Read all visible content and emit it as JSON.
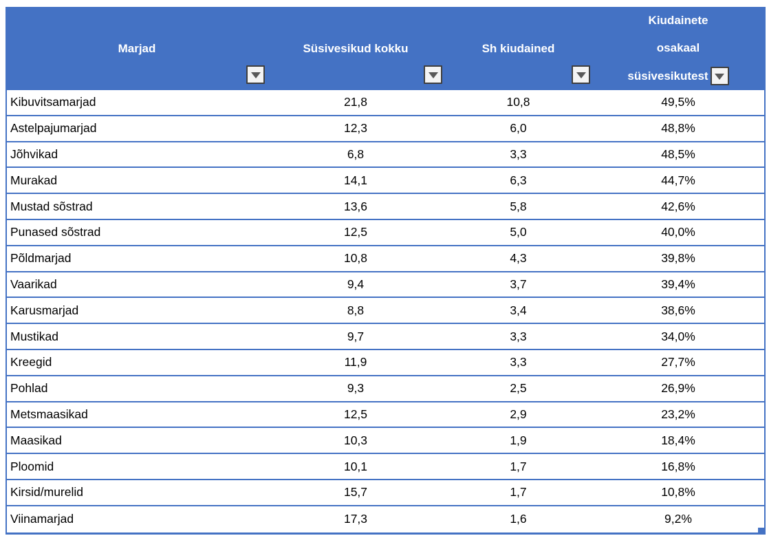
{
  "colors": {
    "header_bg": "#4472C4",
    "header_text": "#FFFFFF",
    "grid_border": "#4472C4",
    "cell_text": "#000000",
    "filter_button_bg": "#F4F4F4",
    "filter_button_border": "#3F3F3F",
    "filter_arrow": "#595959"
  },
  "table": {
    "headers": {
      "col1": {
        "label": "Marjad"
      },
      "col2": {
        "label": "Süsivesikud kokku"
      },
      "col3": {
        "label": "Sh kiudained"
      },
      "col4": {
        "label": "Kiudainete osakaal süsivesikutest",
        "line1": "Kiudainete",
        "line2": "osakaal",
        "line3": "süsivesikutest"
      }
    },
    "rows": [
      {
        "name": "Kibuvitsamarjad",
        "carbs_total": "21,8",
        "fiber": "10,8",
        "fiber_share": "49,5%"
      },
      {
        "name": "Astelpajumarjad",
        "carbs_total": "12,3",
        "fiber": "6,0",
        "fiber_share": "48,8%"
      },
      {
        "name": "Jõhvikad",
        "carbs_total": "6,8",
        "fiber": "3,3",
        "fiber_share": "48,5%"
      },
      {
        "name": "Murakad",
        "carbs_total": "14,1",
        "fiber": "6,3",
        "fiber_share": "44,7%"
      },
      {
        "name": "Mustad sõstrad",
        "carbs_total": "13,6",
        "fiber": "5,8",
        "fiber_share": "42,6%"
      },
      {
        "name": "Punased sõstrad",
        "carbs_total": "12,5",
        "fiber": "5,0",
        "fiber_share": "40,0%"
      },
      {
        "name": "Põldmarjad",
        "carbs_total": "10,8",
        "fiber": "4,3",
        "fiber_share": "39,8%"
      },
      {
        "name": "Vaarikad",
        "carbs_total": "9,4",
        "fiber": "3,7",
        "fiber_share": "39,4%"
      },
      {
        "name": "Karusmarjad",
        "carbs_total": "8,8",
        "fiber": "3,4",
        "fiber_share": "38,6%"
      },
      {
        "name": "Mustikad",
        "carbs_total": "9,7",
        "fiber": "3,3",
        "fiber_share": "34,0%"
      },
      {
        "name": "Kreegid",
        "carbs_total": "11,9",
        "fiber": "3,3",
        "fiber_share": "27,7%"
      },
      {
        "name": "Pohlad",
        "carbs_total": "9,3",
        "fiber": "2,5",
        "fiber_share": "26,9%"
      },
      {
        "name": "Metsmaasikad",
        "carbs_total": "12,5",
        "fiber": "2,9",
        "fiber_share": "23,2%"
      },
      {
        "name": "Maasikad",
        "carbs_total": "10,3",
        "fiber": "1,9",
        "fiber_share": "18,4%"
      },
      {
        "name": "Ploomid",
        "carbs_total": "10,1",
        "fiber": "1,7",
        "fiber_share": "16,8%"
      },
      {
        "name": "Kirsid/murelid",
        "carbs_total": "15,7",
        "fiber": "1,7",
        "fiber_share": "10,8%"
      },
      {
        "name": "Viinamarjad",
        "carbs_total": "17,3",
        "fiber": "1,6",
        "fiber_share": "9,2%"
      }
    ]
  }
}
